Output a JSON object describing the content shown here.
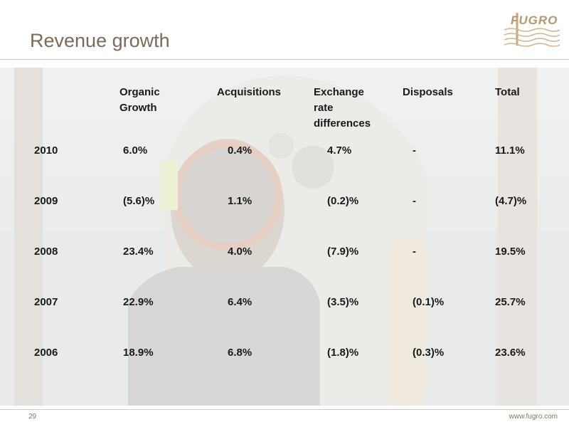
{
  "header": {
    "title": "Revenue growth",
    "logo": "FUGRO"
  },
  "table": {
    "columns": [
      "Organic Growth",
      "Acquisitions",
      "Exchange rate differences",
      "Disposals",
      "Total"
    ],
    "rows": [
      [
        "2010",
        "6.0%",
        "0.4%",
        "4.7%",
        "-",
        "11.1%"
      ],
      [
        "2009",
        "(5.6)%",
        "1.1%",
        "(0.2)%",
        "-",
        "(4.7)%"
      ],
      [
        "2008",
        "23.4%",
        "4.0%",
        "(7.9)%",
        "-",
        "19.5%"
      ],
      [
        "2007",
        "22.9%",
        "6.4%",
        "(3.5)%",
        "(0.1)%",
        "25.7%"
      ],
      [
        "2006",
        "18.9%",
        "6.8%",
        "(1.8)%",
        "(0.3)%",
        "23.6%"
      ]
    ]
  },
  "footer": {
    "page": "29",
    "url": "www.fugro.com"
  }
}
